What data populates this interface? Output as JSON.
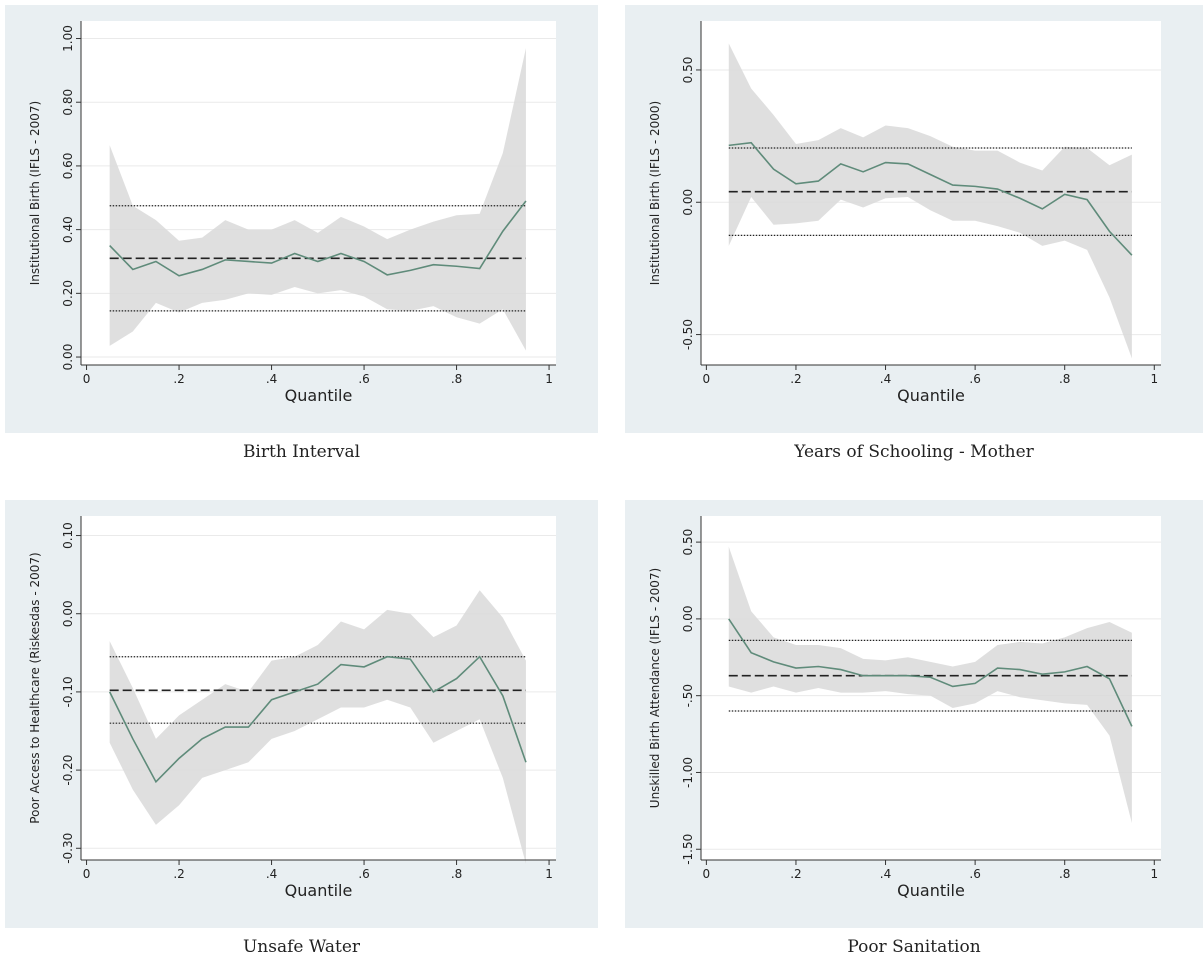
{
  "chart_data": [
    {
      "type": "line",
      "y_label": "Institutional Birth (IFLS - 2007)",
      "x_label": "Quantile",
      "caption": "Birth Interval",
      "x": [
        0.05,
        0.1,
        0.15,
        0.2,
        0.25,
        0.3,
        0.35,
        0.4,
        0.45,
        0.5,
        0.55,
        0.6,
        0.65,
        0.7,
        0.75,
        0.8,
        0.85,
        0.9,
        0.95
      ],
      "values": [
        0.35,
        0.275,
        0.3,
        0.255,
        0.275,
        0.305,
        0.3,
        0.295,
        0.325,
        0.3,
        0.325,
        0.3,
        0.258,
        0.272,
        0.29,
        0.285,
        0.278,
        0.395,
        0.49
      ],
      "ci_upper": [
        0.665,
        0.475,
        0.43,
        0.365,
        0.375,
        0.43,
        0.4,
        0.4,
        0.43,
        0.39,
        0.44,
        0.41,
        0.37,
        0.4,
        0.425,
        0.445,
        0.45,
        0.64,
        0.97
      ],
      "ci_lower": [
        0.035,
        0.08,
        0.17,
        0.14,
        0.17,
        0.18,
        0.2,
        0.195,
        0.22,
        0.2,
        0.21,
        0.19,
        0.15,
        0.145,
        0.16,
        0.125,
        0.105,
        0.15,
        0.02
      ],
      "ols": 0.31,
      "ols_ci_lower": 0.145,
      "ols_ci_upper": 0.475,
      "color": "#5f8b7a",
      "band_color": "#d9d9d9",
      "ols_color": "#222222",
      "xlim": [
        -0.012,
        1.015
      ],
      "xticks": [
        0,
        {
          "value": 0.2,
          "label": ".2"
        },
        {
          "value": 0.4,
          "label": ".4"
        },
        {
          "value": 0.6,
          "label": ".6"
        },
        {
          "value": 0.8,
          "label": ".8"
        },
        1
      ],
      "ylim": [
        -0.025,
        1.055
      ],
      "yticks": [
        {
          "value": 0,
          "label": "0.00"
        },
        {
          "value": 0.2,
          "label": "0.20"
        },
        {
          "value": 0.4,
          "label": "0.40"
        },
        {
          "value": 0.6,
          "label": "0.60"
        },
        {
          "value": 0.8,
          "label": "0.80"
        },
        {
          "value": 1,
          "label": "1.00"
        }
      ],
      "grid": true
    },
    {
      "type": "line",
      "y_label": "Institutional Birth (IFLS - 2000)",
      "x_label": "Quantile",
      "caption": "Years of Schooling - Mother",
      "x": [
        0.05,
        0.1,
        0.15,
        0.2,
        0.25,
        0.3,
        0.35,
        0.4,
        0.45,
        0.5,
        0.55,
        0.6,
        0.65,
        0.7,
        0.75,
        0.8,
        0.85,
        0.9,
        0.95
      ],
      "values": [
        0.215,
        0.225,
        0.125,
        0.07,
        0.08,
        0.145,
        0.115,
        0.15,
        0.145,
        0.105,
        0.065,
        0.06,
        0.05,
        0.015,
        -0.025,
        0.03,
        0.01,
        -0.11,
        -0.2
      ],
      "ci_upper": [
        0.6,
        0.43,
        0.33,
        0.22,
        0.235,
        0.28,
        0.245,
        0.29,
        0.28,
        0.25,
        0.21,
        0.195,
        0.195,
        0.15,
        0.12,
        0.21,
        0.205,
        0.14,
        0.18
      ],
      "ci_lower": [
        -0.165,
        0.02,
        -0.085,
        -0.08,
        -0.07,
        0.01,
        -0.02,
        0.015,
        0.02,
        -0.03,
        -0.07,
        -0.07,
        -0.09,
        -0.115,
        -0.165,
        -0.145,
        -0.18,
        -0.36,
        -0.59
      ],
      "ols": 0.04,
      "ols_ci_lower": -0.125,
      "ols_ci_upper": 0.205,
      "color": "#5f8b7a",
      "band_color": "#d9d9d9",
      "ols_color": "#222222",
      "xlim": [
        -0.012,
        1.015
      ],
      "xticks": [
        0,
        {
          "value": 0.2,
          "label": ".2"
        },
        {
          "value": 0.4,
          "label": ".4"
        },
        {
          "value": 0.6,
          "label": ".6"
        },
        {
          "value": 0.8,
          "label": ".8"
        },
        1
      ],
      "ylim": [
        -0.615,
        0.685
      ],
      "yticks": [
        {
          "value": -0.5,
          "label": "-0.50"
        },
        {
          "value": 0,
          "label": "0.00"
        },
        {
          "value": 0.5,
          "label": "0.50"
        }
      ],
      "grid": true
    },
    {
      "type": "line",
      "y_label": "Poor Access to Healthcare (Riskesdas - 2007)",
      "x_label": "Quantile",
      "caption": "Unsafe Water",
      "x": [
        0.05,
        0.1,
        0.15,
        0.2,
        0.25,
        0.3,
        0.35,
        0.4,
        0.45,
        0.5,
        0.55,
        0.6,
        0.65,
        0.7,
        0.75,
        0.8,
        0.85,
        0.9,
        0.95
      ],
      "values": [
        -0.1,
        -0.16,
        -0.215,
        -0.185,
        -0.16,
        -0.145,
        -0.145,
        -0.11,
        -0.1,
        -0.09,
        -0.065,
        -0.068,
        -0.055,
        -0.058,
        -0.1,
        -0.083,
        -0.055,
        -0.105,
        -0.19
      ],
      "ci_upper": [
        -0.035,
        -0.095,
        -0.16,
        -0.13,
        -0.11,
        -0.09,
        -0.1,
        -0.06,
        -0.055,
        -0.04,
        -0.01,
        -0.02,
        0.005,
        0,
        -0.03,
        -0.015,
        0.03,
        -0.005,
        -0.06
      ],
      "ci_lower": [
        -0.165,
        -0.225,
        -0.27,
        -0.245,
        -0.21,
        -0.2,
        -0.19,
        -0.16,
        -0.15,
        -0.135,
        -0.12,
        -0.12,
        -0.11,
        -0.12,
        -0.165,
        -0.15,
        -0.135,
        -0.21,
        -0.32
      ],
      "ols": -0.098,
      "ols_ci_lower": -0.14,
      "ols_ci_upper": -0.055,
      "color": "#5f8b7a",
      "band_color": "#d9d9d9",
      "ols_color": "#222222",
      "xlim": [
        -0.012,
        1.015
      ],
      "xticks": [
        0,
        {
          "value": 0.2,
          "label": ".2"
        },
        {
          "value": 0.4,
          "label": ".4"
        },
        {
          "value": 0.6,
          "label": ".6"
        },
        {
          "value": 0.8,
          "label": ".8"
        },
        1
      ],
      "ylim": [
        -0.315,
        0.125
      ],
      "yticks": [
        {
          "value": -0.3,
          "label": "-0.30"
        },
        {
          "value": -0.2,
          "label": "-0.20"
        },
        {
          "value": -0.1,
          "label": "-0.10"
        },
        {
          "value": 0,
          "label": "0.00"
        },
        {
          "value": 0.1,
          "label": "0.10"
        }
      ],
      "grid": true
    },
    {
      "type": "line",
      "y_label": "Unskilled Birth Attendance  (IFLS - 2007)",
      "x_label": "Quantile",
      "caption": "Poor Sanitation",
      "x": [
        0.05,
        0.1,
        0.15,
        0.2,
        0.25,
        0.3,
        0.35,
        0.4,
        0.45,
        0.5,
        0.55,
        0.6,
        0.65,
        0.7,
        0.75,
        0.8,
        0.85,
        0.9,
        0.95
      ],
      "values": [
        0,
        -0.22,
        -0.28,
        -0.32,
        -0.31,
        -0.33,
        -0.37,
        -0.37,
        -0.37,
        -0.38,
        -0.44,
        -0.42,
        -0.32,
        -0.33,
        -0.36,
        -0.345,
        -0.31,
        -0.39,
        -0.7
      ],
      "ci_upper": [
        0.47,
        0.05,
        -0.12,
        -0.17,
        -0.17,
        -0.19,
        -0.26,
        -0.27,
        -0.25,
        -0.28,
        -0.31,
        -0.28,
        -0.17,
        -0.15,
        -0.16,
        -0.12,
        -0.06,
        -0.02,
        -0.09
      ],
      "ci_lower": [
        -0.44,
        -0.48,
        -0.44,
        -0.48,
        -0.45,
        -0.48,
        -0.48,
        -0.47,
        -0.49,
        -0.5,
        -0.58,
        -0.55,
        -0.47,
        -0.51,
        -0.53,
        -0.55,
        -0.56,
        -0.76,
        -1.33
      ],
      "ols": -0.37,
      "ols_ci_lower": -0.6,
      "ols_ci_upper": -0.14,
      "color": "#5f8b7a",
      "band_color": "#d9d9d9",
      "ols_color": "#222222",
      "xlim": [
        -0.012,
        1.015
      ],
      "xticks": [
        0,
        {
          "value": 0.2,
          "label": ".2"
        },
        {
          "value": 0.4,
          "label": ".4"
        },
        {
          "value": 0.6,
          "label": ".6"
        },
        {
          "value": 0.8,
          "label": ".8"
        },
        1
      ],
      "ylim": [
        -1.57,
        0.67
      ],
      "yticks": [
        {
          "value": -1.5,
          "label": "-1.50"
        },
        {
          "value": -1,
          "label": "-1.00"
        },
        {
          "value": -0.5,
          "label": "-.50"
        },
        {
          "value": 0,
          "label": "0.00"
        },
        {
          "value": 0.5,
          "label": "0.50"
        }
      ],
      "grid": true
    }
  ]
}
